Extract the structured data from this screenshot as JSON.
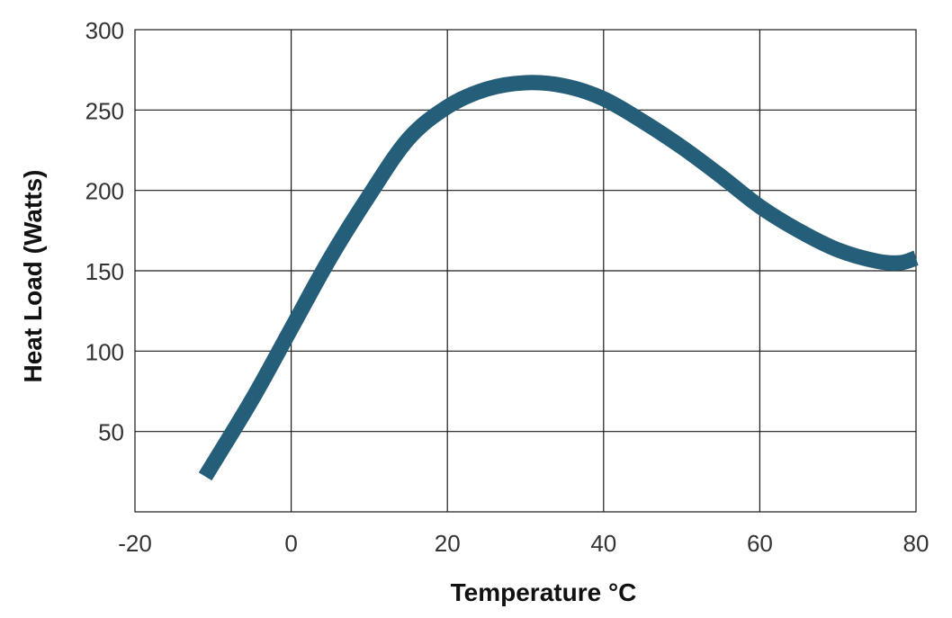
{
  "chart_data": {
    "type": "line",
    "title": "",
    "xlabel": "Temperature °C",
    "ylabel": "Heat Load (Watts)",
    "xlim": [
      -20,
      80
    ],
    "ylim": [
      0,
      300
    ],
    "x_ticks": [
      -20,
      0,
      20,
      40,
      60,
      80
    ],
    "y_ticks": [
      50,
      100,
      150,
      200,
      250,
      300
    ],
    "x_tick_labels": [
      "-20",
      "0",
      "20",
      "40",
      "60",
      "80"
    ],
    "y_tick_labels": [
      "50",
      "100",
      "150",
      "200",
      "250",
      "300"
    ],
    "grid": true,
    "legend": "none",
    "series": [
      {
        "color": "#245e78",
        "x": [
          -11,
          -5,
          0,
          5,
          10,
          15,
          20,
          25,
          30,
          35,
          40,
          45,
          50,
          55,
          60,
          65,
          70,
          75,
          78,
          80
        ],
        "y": [
          22,
          70,
          114,
          158,
          197,
          232,
          252,
          263,
          267,
          265,
          257,
          243,
          227,
          209,
          190,
          175,
          163,
          156,
          155,
          158
        ]
      }
    ]
  }
}
